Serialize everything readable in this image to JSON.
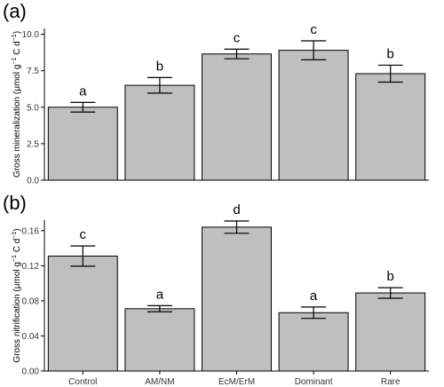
{
  "chart_data": [
    {
      "type": "bar",
      "panel_label": "(a)",
      "categories": [
        "Control",
        "AM/NM",
        "EcM/ErM",
        "Dominant",
        "Rare"
      ],
      "values": [
        5.0,
        6.5,
        8.65,
        8.9,
        7.3
      ],
      "errors": [
        0.33,
        0.53,
        0.33,
        0.65,
        0.58
      ],
      "letters": [
        "a",
        "b",
        "c",
        "c",
        "b"
      ],
      "ylabel_main": "Gross mineralization (μmol g",
      "ylabel_sup1": "−1",
      "ylabel_mid": " C d",
      "ylabel_sup2": "−1",
      "ylabel_end": ")",
      "ylim": [
        0,
        10.4
      ],
      "yticks": [
        "0.0",
        "2.5",
        "5.0",
        "7.5",
        "10.0"
      ],
      "ytick_values": [
        0,
        2.5,
        5.0,
        7.5,
        10.0
      ],
      "show_x_labels": false,
      "grid": false,
      "bar_color": "#bfbfbf",
      "edge_color": "#000000"
    },
    {
      "type": "bar",
      "panel_label": "(b)",
      "categories": [
        "Control",
        "AM/NM",
        "EcM/ErM",
        "Dominant",
        "Rare"
      ],
      "values": [
        0.131,
        0.071,
        0.164,
        0.0665,
        0.089
      ],
      "errors": [
        0.0115,
        0.0035,
        0.007,
        0.0065,
        0.006
      ],
      "letters": [
        "c",
        "a",
        "d",
        "a",
        "b"
      ],
      "ylabel_main": "Gross nitrification (μmol g",
      "ylabel_sup1": "−1",
      "ylabel_mid": " C d",
      "ylabel_sup2": "−1",
      "ylabel_end": ")",
      "ylim": [
        0,
        0.172
      ],
      "yticks": [
        "0.00",
        "0.04",
        "0.08",
        "0.12",
        "0.16"
      ],
      "ytick_values": [
        0,
        0.04,
        0.08,
        0.12,
        0.16
      ],
      "show_x_labels": true,
      "grid": false,
      "bar_color": "#bfbfbf",
      "edge_color": "#000000"
    }
  ]
}
